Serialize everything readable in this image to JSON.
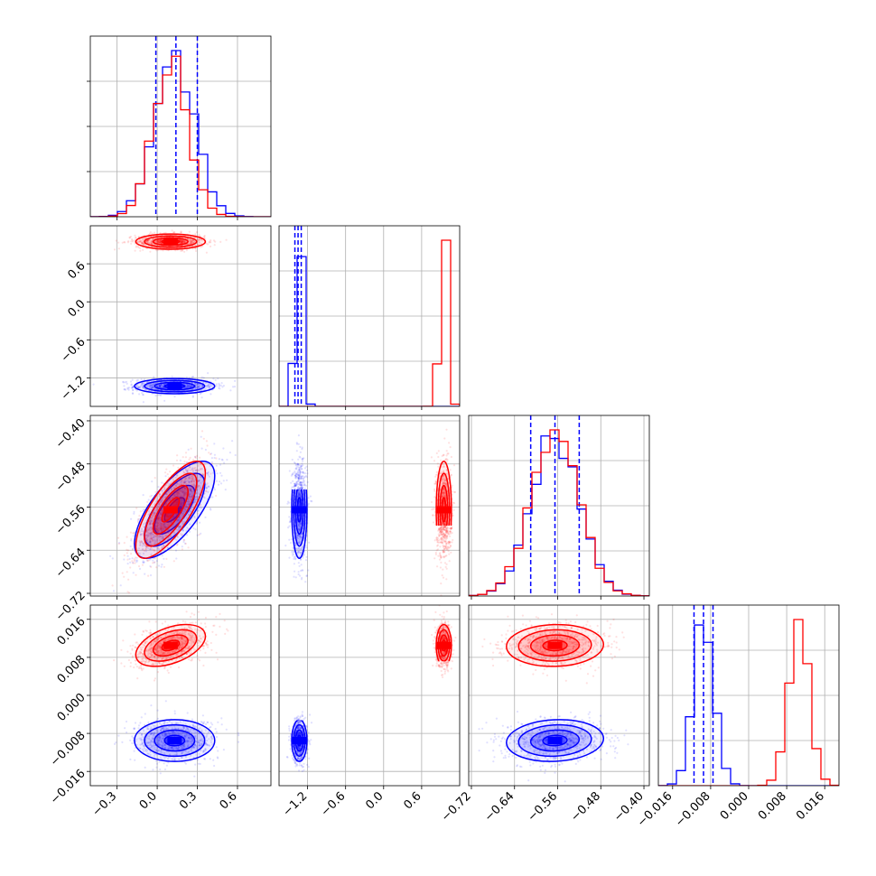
{
  "colors": {
    "red": "#ff0000",
    "blue": "#0000ff",
    "grid": "#b0b0b0",
    "frame": "#000000"
  },
  "chart_data": {
    "type": "corner",
    "grid": true,
    "parameters": [
      {
        "id": "p0",
        "range": [
          -0.5,
          0.85
        ],
        "ticks": [
          -0.3,
          0.0,
          0.3,
          0.6
        ],
        "tick_labels": [
          "−0.3",
          "0.0",
          "0.3",
          "0.6"
        ]
      },
      {
        "id": "p1",
        "range": [
          -1.65,
          1.2
        ],
        "ticks": [
          -1.2,
          -0.6,
          0.0,
          0.6
        ],
        "tick_labels": [
          "−1.2",
          "−0.6",
          "0.0",
          "0.6"
        ]
      },
      {
        "id": "p2",
        "range": [
          -0.725,
          -0.39
        ],
        "ticks": [
          -0.72,
          -0.64,
          -0.56,
          -0.48,
          -0.4
        ],
        "tick_labels": [
          "−0.72",
          "−0.64",
          "−0.56",
          "−0.48",
          "−0.40"
        ]
      },
      {
        "id": "p3",
        "range": [
          -0.019,
          0.019
        ],
        "ticks": [
          -0.016,
          -0.008,
          0.0,
          0.008,
          0.016
        ],
        "tick_labels": [
          "−0.016",
          "−0.008",
          "0.000",
          "0.008",
          "0.016"
        ]
      }
    ],
    "series": [
      {
        "color": "#0000ff",
        "mean": [
          0.13,
          -1.33,
          -0.565,
          -0.0095
        ],
        "sd": [
          0.15,
          0.06,
          0.045,
          0.0022
        ],
        "correlations": {
          "0-2": 0.7,
          "0-3": 0.0,
          "2-3": 0.1,
          "1-2": 0.0,
          "1-3": 0.0,
          "0-1": 0.0
        },
        "quantile_lines": [
          [
            -0.01,
            0.14,
            0.3
          ],
          [
            -1.4,
            -1.35,
            -1.3
          ],
          [
            -0.61,
            -0.565,
            -0.52
          ],
          [
            -0.0115,
            -0.0095,
            -0.0075
          ]
        ]
      },
      {
        "color": "#ff0000",
        "mean": [
          0.1,
          0.95,
          -0.565,
          0.0105
        ],
        "sd": [
          0.13,
          0.06,
          0.045,
          0.0022
        ],
        "correlations": {
          "0-2": 0.75,
          "0-3": 0.45,
          "2-3": 0.05,
          "1-2": 0.0,
          "1-3": 0.0,
          "0-1": 0.0
        },
        "quantile_lines": []
      }
    ]
  }
}
